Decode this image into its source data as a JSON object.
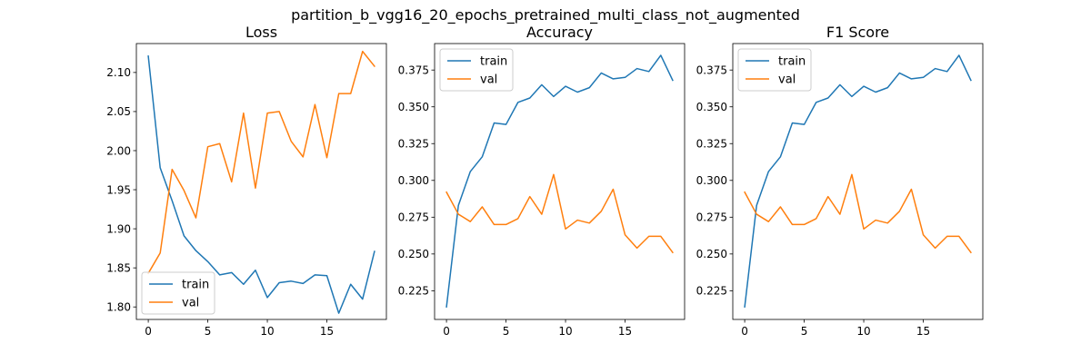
{
  "figure": {
    "suptitle": "partition_b_vgg16_20_epochs_pretrained_multi_class_not_augmented"
  },
  "chart_data": [
    {
      "type": "line",
      "title": "Loss",
      "xlabel": "",
      "ylabel": "",
      "xlim": [
        -1,
        20
      ],
      "ylim": [
        1.784,
        2.137
      ],
      "xticks": [
        0,
        5,
        10,
        15
      ],
      "yticks": [
        1.8,
        1.85,
        1.9,
        1.95,
        2.0,
        2.05,
        2.1
      ],
      "ytick_labels": [
        "1.80",
        "1.85",
        "1.90",
        "1.95",
        "2.00",
        "2.05",
        "2.10"
      ],
      "legend_position": "lower-left",
      "x": [
        0,
        1,
        2,
        3,
        4,
        5,
        6,
        7,
        8,
        9,
        10,
        11,
        12,
        13,
        14,
        15,
        16,
        17,
        18,
        19
      ],
      "series": [
        {
          "name": "train",
          "color": "#1f77b4",
          "values": [
            2.121,
            1.978,
            1.936,
            1.891,
            1.872,
            1.858,
            1.841,
            1.844,
            1.829,
            1.847,
            1.812,
            1.831,
            1.833,
            1.83,
            1.841,
            1.84,
            1.792,
            1.829,
            1.81,
            1.871
          ]
        },
        {
          "name": "val",
          "color": "#ff7f0e",
          "values": [
            1.843,
            1.869,
            1.976,
            1.949,
            1.914,
            2.005,
            2.009,
            1.96,
            2.048,
            1.952,
            2.048,
            2.05,
            2.012,
            1.992,
            2.059,
            1.991,
            2.073,
            2.073,
            2.127,
            2.108
          ]
        }
      ]
    },
    {
      "type": "line",
      "title": "Accuracy",
      "xlabel": "",
      "ylabel": "",
      "xlim": [
        -1,
        20
      ],
      "ylim": [
        0.2055,
        0.393
      ],
      "xticks": [
        0,
        5,
        10,
        15
      ],
      "yticks": [
        0.225,
        0.25,
        0.275,
        0.3,
        0.325,
        0.35,
        0.375
      ],
      "ytick_labels": [
        "0.225",
        "0.250",
        "0.275",
        "0.300",
        "0.325",
        "0.350",
        "0.375"
      ],
      "legend_position": "upper-left",
      "x": [
        0,
        1,
        2,
        3,
        4,
        5,
        6,
        7,
        8,
        9,
        10,
        11,
        12,
        13,
        14,
        15,
        16,
        17,
        18,
        19
      ],
      "series": [
        {
          "name": "train",
          "color": "#1f77b4",
          "values": [
            0.214,
            0.283,
            0.306,
            0.316,
            0.339,
            0.338,
            0.353,
            0.356,
            0.365,
            0.357,
            0.364,
            0.36,
            0.363,
            0.373,
            0.369,
            0.37,
            0.376,
            0.374,
            0.385,
            0.368
          ]
        },
        {
          "name": "val",
          "color": "#ff7f0e",
          "values": [
            0.292,
            0.277,
            0.272,
            0.282,
            0.27,
            0.27,
            0.274,
            0.289,
            0.277,
            0.304,
            0.267,
            0.273,
            0.271,
            0.279,
            0.294,
            0.263,
            0.254,
            0.262,
            0.262,
            0.251
          ]
        }
      ]
    },
    {
      "type": "line",
      "title": "F1 Score",
      "xlabel": "",
      "ylabel": "",
      "xlim": [
        -1,
        20
      ],
      "ylim": [
        0.2055,
        0.393
      ],
      "xticks": [
        0,
        5,
        10,
        15
      ],
      "yticks": [
        0.225,
        0.25,
        0.275,
        0.3,
        0.325,
        0.35,
        0.375
      ],
      "ytick_labels": [
        "0.225",
        "0.250",
        "0.275",
        "0.300",
        "0.325",
        "0.350",
        "0.375"
      ],
      "legend_position": "upper-left",
      "x": [
        0,
        1,
        2,
        3,
        4,
        5,
        6,
        7,
        8,
        9,
        10,
        11,
        12,
        13,
        14,
        15,
        16,
        17,
        18,
        19
      ],
      "series": [
        {
          "name": "train",
          "color": "#1f77b4",
          "values": [
            0.214,
            0.283,
            0.306,
            0.316,
            0.339,
            0.338,
            0.353,
            0.356,
            0.365,
            0.357,
            0.364,
            0.36,
            0.363,
            0.373,
            0.369,
            0.37,
            0.376,
            0.374,
            0.385,
            0.368
          ]
        },
        {
          "name": "val",
          "color": "#ff7f0e",
          "values": [
            0.292,
            0.277,
            0.272,
            0.282,
            0.27,
            0.27,
            0.274,
            0.289,
            0.277,
            0.304,
            0.267,
            0.273,
            0.271,
            0.279,
            0.294,
            0.263,
            0.254,
            0.262,
            0.262,
            0.251
          ]
        }
      ]
    }
  ]
}
